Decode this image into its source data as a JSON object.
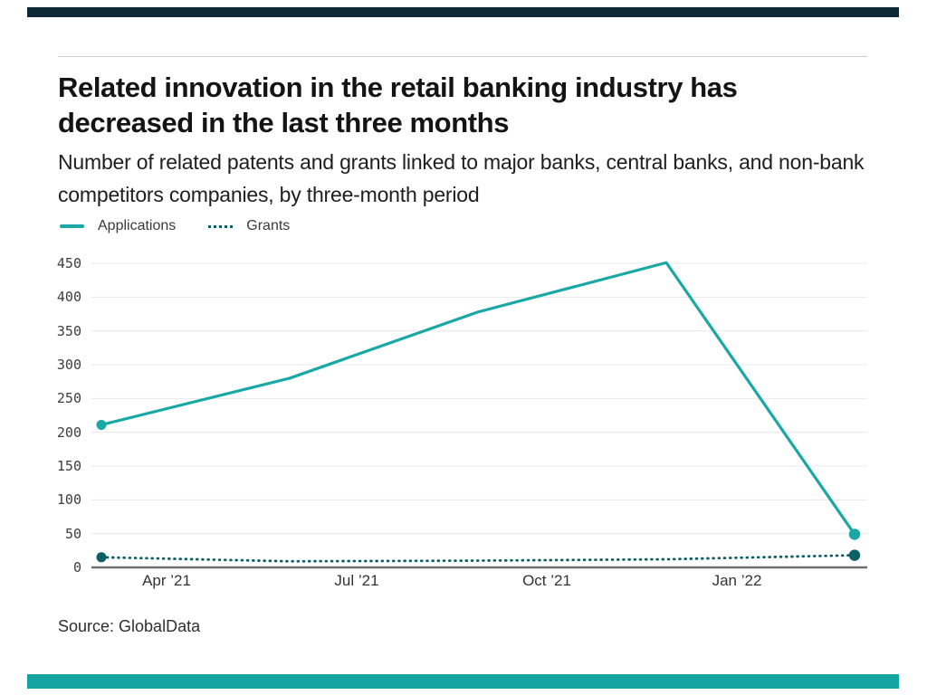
{
  "header": {
    "title": "Related innovation in the retail banking industry has decreased in the last three months",
    "subtitle": "Number of related patents and grants linked to major banks, central banks, and non-bank competitors companies, by three-month period"
  },
  "legend": {
    "items": [
      {
        "label": "Applications",
        "style": "solid",
        "color": "#19a8a5"
      },
      {
        "label": "Grants",
        "style": "dotted",
        "color": "#0d5f66"
      }
    ]
  },
  "chart_data": {
    "type": "line",
    "title": "Related innovation in the retail banking industry has decreased in the last three months",
    "subtitle": "Number of related patents and grants linked to major banks, central banks, and non-bank competitors companies, by three-month period",
    "x_tick_labels": [
      "Apr ’21",
      "Jul ’21",
      "Oct ’21",
      "Jan ’22"
    ],
    "y_tick_values": [
      450,
      400,
      350,
      300,
      250,
      200,
      150,
      100,
      50,
      0
    ],
    "ylim": [
      0,
      450
    ],
    "grid": true,
    "legend_position": "top-left",
    "xlabel": "",
    "ylabel": "",
    "series": [
      {
        "name": "Applications",
        "style": "solid",
        "color": "#19a8a5",
        "values": [
          211,
          280,
          378,
          451,
          49
        ]
      },
      {
        "name": "Grants",
        "style": "dotted",
        "color": "#0d5f66",
        "values": [
          15,
          9,
          10,
          12,
          18
        ]
      }
    ],
    "source": "Source: GlobalData"
  },
  "footer": {
    "source": "Source: GlobalData"
  },
  "theme": {
    "top_bar_color": "#0e2836",
    "bottom_bar_color": "#13a3a1",
    "divider_color": "#cccccc",
    "grid_color": "#e8e8e8",
    "axis_color": "#6e6e6e",
    "applications_color": "#19a8a5",
    "grants_color": "#0d5f66"
  }
}
